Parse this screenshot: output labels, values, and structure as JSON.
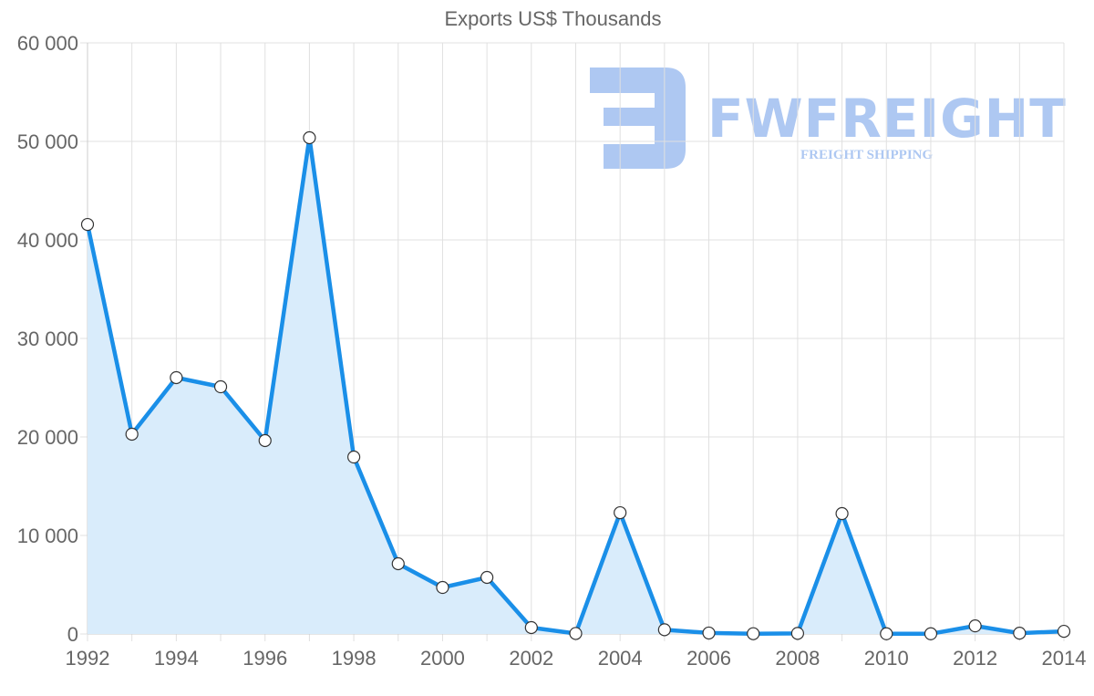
{
  "chart": {
    "title": "Exports US$ Thousands",
    "watermark": {
      "brand": "FWFREIGHT",
      "tagline": "FREIGHT SHIPPING"
    },
    "colors": {
      "line": "#1a8fe8",
      "fill": "#d9ecfb",
      "grid": "#e0e0e0",
      "text": "#666666",
      "watermark": "#aec8f2"
    }
  },
  "chart_data": {
    "type": "area",
    "title": "Exports US$ Thousands",
    "xlabel": "",
    "ylabel": "",
    "x": [
      1992,
      1993,
      1994,
      1995,
      1996,
      1997,
      1998,
      1999,
      2000,
      2001,
      2002,
      2003,
      2004,
      2005,
      2006,
      2007,
      2008,
      2009,
      2010,
      2011,
      2012,
      2013,
      2014
    ],
    "series": [
      {
        "name": "Exports US$ Thousands",
        "values": [
          41570,
          20280,
          26020,
          25090,
          19630,
          50370,
          17960,
          7130,
          4720,
          5740,
          650,
          50,
          12310,
          430,
          100,
          30,
          60,
          12220,
          20,
          20,
          820,
          80,
          270
        ]
      }
    ],
    "x_tick_labels": [
      "1992",
      "1994",
      "1996",
      "1998",
      "2000",
      "2002",
      "2004",
      "2006",
      "2008",
      "2010",
      "2012",
      "2014"
    ],
    "y_tick_labels": [
      "0",
      "10 000",
      "20 000",
      "30 000",
      "40 000",
      "50 000",
      "60 000"
    ],
    "ylim": [
      0,
      60000
    ],
    "xlim": [
      1992,
      2014
    ],
    "grid": true,
    "legend": "none"
  }
}
